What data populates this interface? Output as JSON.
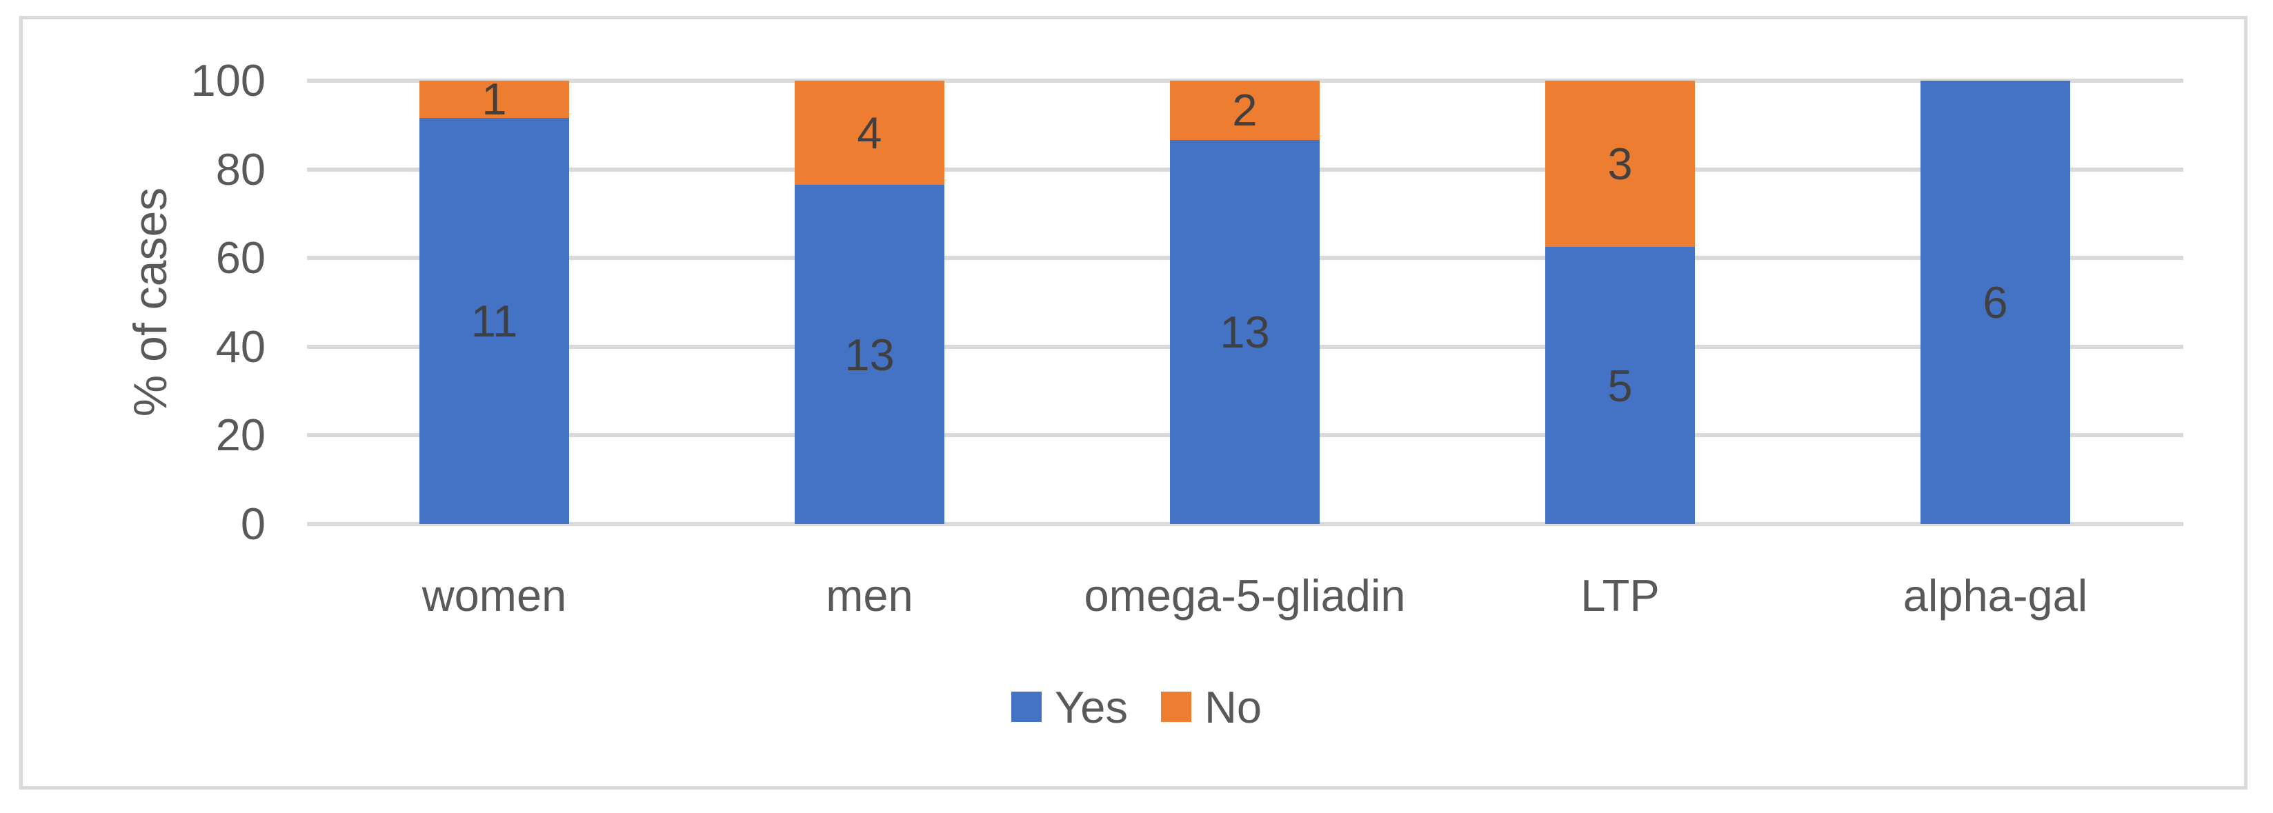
{
  "chart_data": {
    "type": "bar",
    "stacked": true,
    "percent_stacked": true,
    "title": "",
    "categories": [
      "women",
      "men",
      "omega-5-gliadin",
      "LTP",
      "alpha-gal"
    ],
    "series": [
      {
        "name": "Yes",
        "color": "#4472C4",
        "values": [
          11,
          13,
          13,
          5,
          6
        ]
      },
      {
        "name": "No",
        "color": "#ED7D31",
        "values": [
          1,
          4,
          2,
          3,
          0
        ]
      }
    ],
    "xlabel": "",
    "ylabel": "% of cases",
    "ylim": [
      0,
      100
    ],
    "yticks": [
      0,
      20,
      40,
      60,
      80,
      100
    ],
    "grid": true,
    "legend_position": "bottom"
  },
  "legend": {
    "items": [
      {
        "label": "Yes",
        "color": "#4472C4"
      },
      {
        "label": "No",
        "color": "#ED7D31"
      }
    ]
  },
  "colors": {
    "background": "#FFFFFF",
    "frame_border": "#D9D9D9",
    "gridline": "#D9D9D9",
    "axis_text": "#595959",
    "data_label_text": "#404040"
  }
}
